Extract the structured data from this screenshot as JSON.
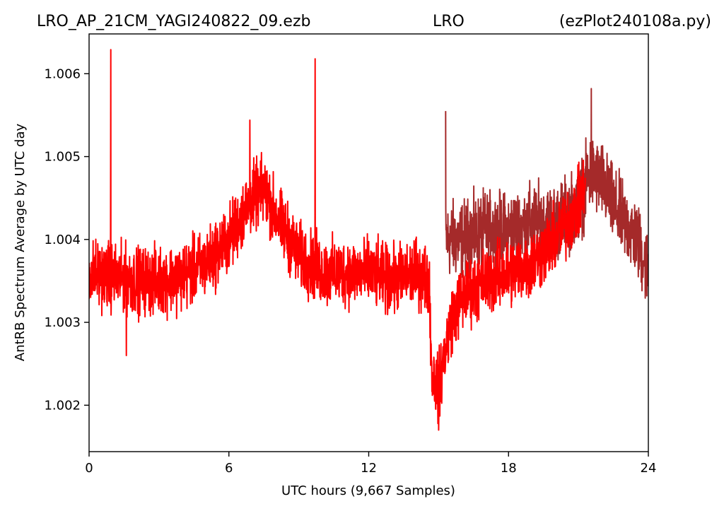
{
  "chart_data": {
    "type": "line",
    "title_left": "LRO_AP_21CM_YAGI240822_09.ezb",
    "title_center": "LRO",
    "title_right": "(ezPlot240108a.py)",
    "xlabel": "UTC hours  (9,667 Samples)",
    "ylabel": "AntRB Spectrum Average by UTC day",
    "xlim": [
      0,
      24
    ],
    "ylim": [
      1.00144,
      1.00648
    ],
    "x_ticks": [
      0,
      6,
      12,
      18,
      24
    ],
    "x_tick_labels": [
      "0",
      "6",
      "12",
      "18",
      "24"
    ],
    "y_ticks": [
      1.002,
      1.003,
      1.004,
      1.005,
      1.006
    ],
    "y_tick_labels": [
      "1.002",
      "1.003",
      "1.004",
      "1.005",
      "1.006"
    ],
    "grid": false,
    "sample_count": 9667,
    "series": [
      {
        "color": "#a52a2a",
        "start_x": 15.3,
        "baseline": [
          [
            15.3,
            1.004
          ],
          [
            16.0,
            1.004
          ],
          [
            17.0,
            1.0041
          ],
          [
            18.0,
            1.0041
          ],
          [
            19.0,
            1.0042
          ],
          [
            20.0,
            1.0042
          ],
          [
            21.0,
            1.0044
          ],
          [
            21.5,
            1.0048
          ],
          [
            22.0,
            1.0047
          ],
          [
            22.5,
            1.0044
          ],
          [
            23.0,
            1.0042
          ],
          [
            23.5,
            1.004
          ],
          [
            24.0,
            1.0036
          ]
        ],
        "noise": 0.00034,
        "spikes": [
          [
            15.3,
            1.00555
          ],
          [
            21.55,
            1.00582
          ]
        ]
      },
      {
        "color": "#ff0000",
        "start_x": 0,
        "baseline": [
          [
            0.0,
            1.0036
          ],
          [
            1.0,
            1.00355
          ],
          [
            2.0,
            1.0035
          ],
          [
            3.0,
            1.0035
          ],
          [
            4.0,
            1.00355
          ],
          [
            5.0,
            1.0037
          ],
          [
            6.0,
            1.004
          ],
          [
            7.0,
            1.0045
          ],
          [
            7.5,
            1.0046
          ],
          [
            8.0,
            1.0043
          ],
          [
            9.0,
            1.0038
          ],
          [
            10.0,
            1.0036
          ],
          [
            11.0,
            1.0036
          ],
          [
            12.0,
            1.0036
          ],
          [
            13.0,
            1.0035
          ],
          [
            14.0,
            1.0036
          ],
          [
            14.6,
            1.0035
          ],
          [
            14.7,
            1.0024
          ],
          [
            15.0,
            1.0022
          ],
          [
            15.5,
            1.003
          ],
          [
            16.0,
            1.0033
          ],
          [
            17.0,
            1.0035
          ],
          [
            18.0,
            1.0036
          ],
          [
            19.0,
            1.0037
          ],
          [
            20.0,
            1.004
          ],
          [
            21.0,
            1.0044
          ],
          [
            21.3,
            1.0047
          ]
        ],
        "noise": 0.0003,
        "spikes": [
          [
            0.93,
            1.00629
          ],
          [
            6.9,
            1.00544
          ],
          [
            9.7,
            1.00618
          ],
          [
            1.6,
            1.0026
          ],
          [
            15.0,
            1.0017
          ]
        ]
      }
    ]
  }
}
